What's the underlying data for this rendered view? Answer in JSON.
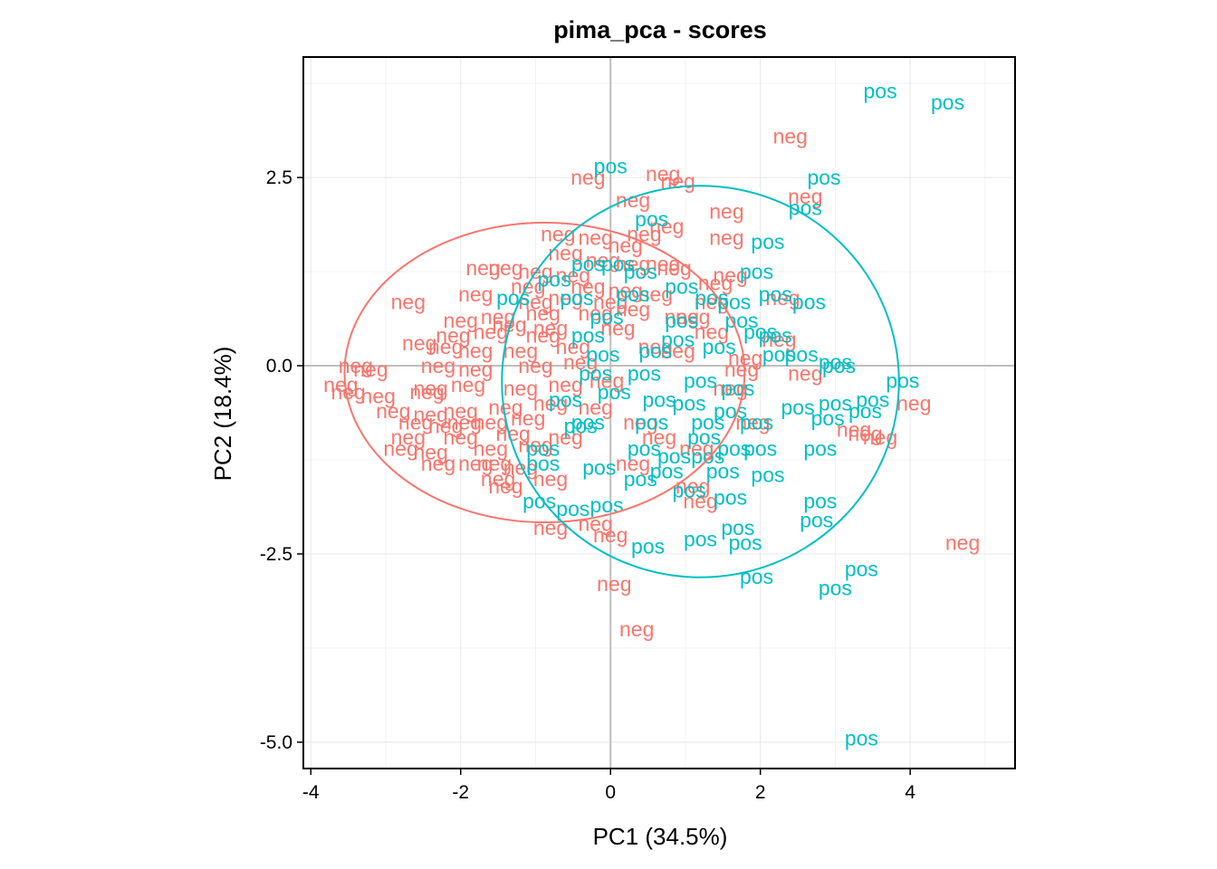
{
  "chart_data": {
    "type": "scatter",
    "title": "pima_pca - scores",
    "xlabel": "PC1 (34.5%)",
    "ylabel": "PC2 (18.4%)",
    "xlim": [
      -4.1,
      5.4
    ],
    "ylim": [
      -5.35,
      4.1
    ],
    "xticks": [
      -4,
      -2,
      0,
      2,
      4
    ],
    "xtick_labels": [
      "-4",
      "-2",
      "0",
      "2",
      "4"
    ],
    "yticks": [
      -5.0,
      -2.5,
      0.0,
      2.5
    ],
    "ytick_labels": [
      "-5.0",
      "-2.5",
      "0.0",
      "2.5"
    ],
    "grid": true,
    "zero_lines": true,
    "legend": "none",
    "colors": {
      "neg": "#F8766D",
      "pos": "#00BFC4"
    },
    "ellipses": [
      {
        "group": "neg",
        "cx": -0.88,
        "cy": -0.09,
        "rx": 2.67,
        "ry": 1.99,
        "angle": 0
      },
      {
        "group": "pos",
        "cx": 1.2,
        "cy": -0.21,
        "rx": 2.65,
        "ry": 2.6,
        "angle": 0
      }
    ],
    "series": [
      {
        "name": "neg",
        "points": [
          [
            2.4,
            3.05
          ],
          [
            2.6,
            2.25
          ],
          [
            -0.3,
            2.5
          ],
          [
            0.7,
            2.55
          ],
          [
            0.9,
            2.45
          ],
          [
            1.55,
            2.05
          ],
          [
            0.3,
            2.2
          ],
          [
            0.75,
            1.85
          ],
          [
            1.55,
            1.7
          ],
          [
            -0.7,
            1.75
          ],
          [
            -0.2,
            1.7
          ],
          [
            0.2,
            1.6
          ],
          [
            0.45,
            1.75
          ],
          [
            -0.6,
            1.5
          ],
          [
            -0.1,
            1.4
          ],
          [
            0.3,
            1.35
          ],
          [
            -1.4,
            1.3
          ],
          [
            -1.0,
            1.25
          ],
          [
            -0.5,
            1.2
          ],
          [
            0.85,
            1.3
          ],
          [
            1.6,
            1.2
          ],
          [
            -1.1,
            1.05
          ],
          [
            -0.3,
            1.05
          ],
          [
            0.2,
            1.0
          ],
          [
            1.4,
            1.1
          ],
          [
            2.3,
            0.9
          ],
          [
            -2.7,
            0.85
          ],
          [
            -1.8,
            0.95
          ],
          [
            -1.0,
            0.85
          ],
          [
            -0.6,
            0.9
          ],
          [
            0.0,
            0.85
          ],
          [
            0.6,
            0.95
          ],
          [
            -2.0,
            0.6
          ],
          [
            -1.5,
            0.65
          ],
          [
            -0.9,
            0.7
          ],
          [
            -0.2,
            0.7
          ],
          [
            0.3,
            0.75
          ],
          [
            0.95,
            0.65
          ],
          [
            -2.1,
            0.4
          ],
          [
            -1.6,
            0.45
          ],
          [
            -0.8,
            0.5
          ],
          [
            0.1,
            0.5
          ],
          [
            1.35,
            0.45
          ],
          [
            2.25,
            0.35
          ],
          [
            -2.2,
            0.25
          ],
          [
            -1.8,
            0.2
          ],
          [
            -1.2,
            0.2
          ],
          [
            -0.5,
            0.25
          ],
          [
            0.9,
            0.2
          ],
          [
            1.8,
            0.1
          ],
          [
            -3.4,
            0.0
          ],
          [
            -3.2,
            -0.05
          ],
          [
            -2.3,
            0.0
          ],
          [
            -1.8,
            -0.05
          ],
          [
            -1.0,
            0.0
          ],
          [
            -0.4,
            0.05
          ],
          [
            1.75,
            -0.05
          ],
          [
            2.6,
            -0.1
          ],
          [
            -3.6,
            -0.25
          ],
          [
            -3.5,
            -0.35
          ],
          [
            -3.1,
            -0.4
          ],
          [
            -2.4,
            -0.3
          ],
          [
            -1.9,
            -0.25
          ],
          [
            -1.2,
            -0.3
          ],
          [
            -0.6,
            -0.25
          ],
          [
            1.6,
            -0.3
          ],
          [
            -2.9,
            -0.6
          ],
          [
            -2.4,
            -0.65
          ],
          [
            -2.0,
            -0.6
          ],
          [
            -1.4,
            -0.55
          ],
          [
            -0.8,
            -0.5
          ],
          [
            -0.2,
            -0.55
          ],
          [
            -2.6,
            -0.75
          ],
          [
            -2.2,
            -0.8
          ],
          [
            -1.6,
            -0.75
          ],
          [
            -1.1,
            -0.7
          ],
          [
            0.4,
            -0.75
          ],
          [
            1.9,
            -0.75
          ],
          [
            -2.7,
            -0.95
          ],
          [
            -2.0,
            -0.95
          ],
          [
            -1.3,
            -0.9
          ],
          [
            -0.6,
            -0.95
          ],
          [
            0.65,
            -0.95
          ],
          [
            3.4,
            -0.9
          ],
          [
            -2.8,
            -1.1
          ],
          [
            -2.4,
            -1.15
          ],
          [
            -1.6,
            -1.1
          ],
          [
            -1.0,
            -1.05
          ],
          [
            1.15,
            -1.1
          ],
          [
            3.6,
            -0.95
          ],
          [
            -2.3,
            -1.3
          ],
          [
            -1.8,
            -1.3
          ],
          [
            -1.2,
            -1.35
          ],
          [
            0.3,
            -1.3
          ],
          [
            -1.5,
            -1.5
          ],
          [
            -0.8,
            -1.5
          ],
          [
            -1.4,
            -1.6
          ],
          [
            1.1,
            -1.6
          ],
          [
            1.2,
            -1.8
          ],
          [
            -0.8,
            -2.15
          ],
          [
            -0.2,
            -2.1
          ],
          [
            0.0,
            -2.25
          ],
          [
            4.7,
            -2.35
          ],
          [
            0.05,
            -2.9
          ],
          [
            0.35,
            -3.5
          ],
          [
            4.05,
            -0.5
          ],
          [
            3.25,
            -0.85
          ],
          [
            -0.9,
            0.4
          ],
          [
            0.6,
            0.25
          ],
          [
            1.1,
            0.65
          ],
          [
            -2.55,
            0.3
          ],
          [
            -2.45,
            -0.35
          ],
          [
            -1.35,
            0.55
          ],
          [
            -0.05,
            -0.2
          ],
          [
            -1.7,
            1.3
          ],
          [
            -1.95,
            -0.75
          ],
          [
            -1.55,
            -1.3
          ],
          [
            0.7,
            1.35
          ],
          [
            1.35,
            0.85
          ]
        ]
      },
      {
        "name": "pos",
        "points": [
          [
            3.6,
            3.65
          ],
          [
            4.5,
            3.5
          ],
          [
            0.0,
            2.65
          ],
          [
            2.85,
            2.5
          ],
          [
            2.6,
            2.1
          ],
          [
            0.55,
            1.95
          ],
          [
            2.1,
            1.65
          ],
          [
            -0.3,
            1.35
          ],
          [
            0.1,
            1.35
          ],
          [
            1.95,
            1.25
          ],
          [
            -0.75,
            1.15
          ],
          [
            0.3,
            0.95
          ],
          [
            1.35,
            0.9
          ],
          [
            1.65,
            0.85
          ],
          [
            2.65,
            0.85
          ],
          [
            -0.05,
            0.65
          ],
          [
            0.95,
            0.6
          ],
          [
            1.75,
            0.6
          ],
          [
            -0.3,
            0.4
          ],
          [
            0.9,
            0.35
          ],
          [
            2.2,
            0.4
          ],
          [
            -0.1,
            0.15
          ],
          [
            0.6,
            0.2
          ],
          [
            2.25,
            0.15
          ],
          [
            2.55,
            0.15
          ],
          [
            3.0,
            0.05
          ],
          [
            3.05,
            0.0
          ],
          [
            -0.2,
            -0.1
          ],
          [
            0.45,
            -0.1
          ],
          [
            1.2,
            -0.2
          ],
          [
            1.7,
            -0.3
          ],
          [
            3.9,
            -0.2
          ],
          [
            -0.6,
            -0.45
          ],
          [
            0.65,
            -0.45
          ],
          [
            1.05,
            -0.5
          ],
          [
            1.6,
            -0.6
          ],
          [
            3.0,
            -0.5
          ],
          [
            3.5,
            -0.45
          ],
          [
            3.4,
            -0.6
          ],
          [
            -0.4,
            -0.8
          ],
          [
            0.55,
            -0.75
          ],
          [
            1.3,
            -0.75
          ],
          [
            1.95,
            -0.75
          ],
          [
            2.9,
            -0.7
          ],
          [
            -0.9,
            -1.1
          ],
          [
            0.45,
            -1.1
          ],
          [
            0.85,
            -1.2
          ],
          [
            1.3,
            -1.2
          ],
          [
            1.65,
            -1.1
          ],
          [
            2.0,
            -1.1
          ],
          [
            2.8,
            -1.1
          ],
          [
            -0.9,
            -1.3
          ],
          [
            -0.15,
            -1.35
          ],
          [
            1.5,
            -1.4
          ],
          [
            2.1,
            -1.45
          ],
          [
            0.4,
            -1.5
          ],
          [
            1.05,
            -1.65
          ],
          [
            1.6,
            -1.75
          ],
          [
            2.8,
            -1.8
          ],
          [
            2.75,
            -2.05
          ],
          [
            -0.95,
            -1.8
          ],
          [
            -0.5,
            -1.9
          ],
          [
            -0.05,
            -1.85
          ],
          [
            1.7,
            -2.15
          ],
          [
            1.2,
            -2.3
          ],
          [
            1.8,
            -2.35
          ],
          [
            0.5,
            -2.4
          ],
          [
            1.95,
            -2.8
          ],
          [
            3.35,
            -2.7
          ],
          [
            3.0,
            -2.95
          ],
          [
            3.35,
            -4.95
          ],
          [
            0.05,
            -0.35
          ],
          [
            1.45,
            0.25
          ],
          [
            -0.45,
            0.9
          ],
          [
            0.4,
            1.25
          ],
          [
            2.0,
            0.45
          ],
          [
            -0.3,
            -0.75
          ],
          [
            1.25,
            -0.95
          ],
          [
            2.5,
            -0.55
          ],
          [
            0.95,
            1.05
          ],
          [
            -1.3,
            0.9
          ],
          [
            0.75,
            -1.4
          ],
          [
            2.2,
            0.95
          ]
        ]
      }
    ]
  }
}
